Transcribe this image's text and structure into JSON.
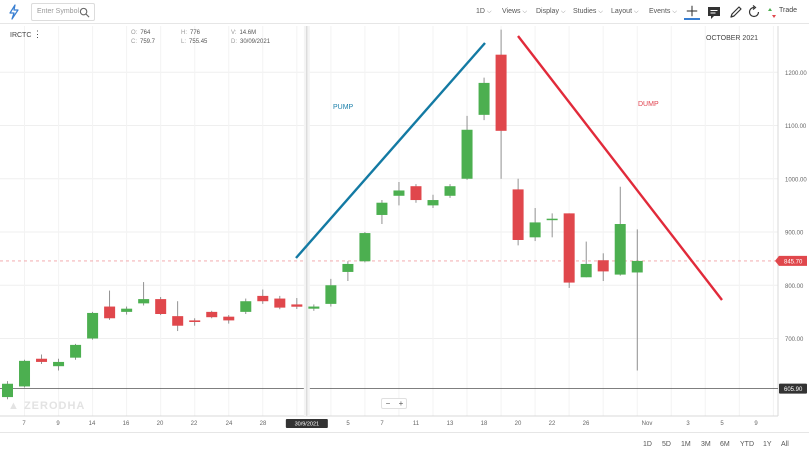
{
  "toolbar": {
    "search_placeholder": "Enter Symbol",
    "interval": "1D",
    "menus": [
      "Views",
      "Display",
      "Studies",
      "Layout",
      "Events"
    ],
    "trade_label": "Trade"
  },
  "chart_header": {
    "symbol": "IRCTC",
    "open": "764",
    "high": "776",
    "volume": "14.6M",
    "close": "759.7",
    "low": "755.45",
    "date": "30/09/2021",
    "labels": {
      "open": "O:",
      "high": "H:",
      "volume": "V:",
      "close": "C:",
      "low": "L:",
      "date": "D:"
    }
  },
  "annotations": {
    "month": "OCTOBER 2021",
    "pump": "PUMP",
    "dump": "DUMP"
  },
  "watermark": "ZERODHA",
  "zoom": {
    "minus": "−",
    "plus": "+"
  },
  "range_buttons": [
    "1D",
    "5D",
    "1M",
    "3M",
    "6M",
    "YTD",
    "1Y",
    "All"
  ],
  "colors": {
    "up": "#4caf50",
    "down": "#e0474c",
    "pump_line": "#137aa3",
    "dump_line": "#e12a3a",
    "price_tag": "#e0474c"
  },
  "chart_data": {
    "type": "candlestick",
    "ylim": [
      580,
      1290
    ],
    "y_ticks": [
      700,
      800,
      900,
      1000,
      1100,
      1200
    ],
    "y_tick_labels": [
      "700.00",
      "800.00",
      "900.00",
      "1000.00",
      "1100.00",
      "1200.00"
    ],
    "current_price": "845.70",
    "reference_price": "605.90",
    "x_tick_labels": [
      "7",
      "9",
      "14",
      "16",
      "20",
      "22",
      "24",
      "28",
      "5",
      "7",
      "11",
      "13",
      "18",
      "20",
      "22",
      "26",
      "Nov",
      "3",
      "5",
      "9"
    ],
    "crosshair_date": "30/9/2021",
    "candles": [
      {
        "o": 590,
        "c": 615,
        "h": 620,
        "l": 586
      },
      {
        "o": 610,
        "c": 658,
        "h": 660,
        "l": 608
      },
      {
        "o": 662,
        "c": 656,
        "h": 670,
        "l": 652
      },
      {
        "o": 648,
        "c": 656,
        "h": 662,
        "l": 640
      },
      {
        "o": 664,
        "c": 688,
        "h": 690,
        "l": 660
      },
      {
        "o": 700,
        "c": 748,
        "h": 750,
        "l": 698
      },
      {
        "o": 760,
        "c": 738,
        "h": 790,
        "l": 735
      },
      {
        "o": 750,
        "c": 756,
        "h": 760,
        "l": 745
      },
      {
        "o": 766,
        "c": 774,
        "h": 806,
        "l": 762
      },
      {
        "o": 774,
        "c": 746,
        "h": 778,
        "l": 744
      },
      {
        "o": 742,
        "c": 724,
        "h": 770,
        "l": 714
      },
      {
        "o": 734,
        "c": 731,
        "h": 738,
        "l": 724
      },
      {
        "o": 750,
        "c": 740,
        "h": 752,
        "l": 738
      },
      {
        "o": 741,
        "c": 734,
        "h": 744,
        "l": 728
      },
      {
        "o": 750,
        "c": 770,
        "h": 775,
        "l": 746
      },
      {
        "o": 780,
        "c": 770,
        "h": 792,
        "l": 765
      },
      {
        "o": 775,
        "c": 758,
        "h": 780,
        "l": 755
      },
      {
        "o": 764,
        "c": 759.7,
        "h": 776,
        "l": 755.45
      },
      {
        "o": 756,
        "c": 760,
        "h": 764,
        "l": 752
      },
      {
        "o": 765,
        "c": 800,
        "h": 812,
        "l": 760
      },
      {
        "o": 825,
        "c": 840,
        "h": 845,
        "l": 808
      },
      {
        "o": 845,
        "c": 898,
        "h": 900,
        "l": 843
      },
      {
        "o": 932,
        "c": 955,
        "h": 960,
        "l": 915
      },
      {
        "o": 968,
        "c": 978,
        "h": 994,
        "l": 950
      },
      {
        "o": 986,
        "c": 960,
        "h": 990,
        "l": 955
      },
      {
        "o": 950,
        "c": 960,
        "h": 970,
        "l": 945
      },
      {
        "o": 968,
        "c": 986,
        "h": 990,
        "l": 964
      },
      {
        "o": 1000,
        "c": 1092,
        "h": 1118,
        "l": 998
      },
      {
        "o": 1120,
        "c": 1180,
        "h": 1190,
        "l": 1110
      },
      {
        "o": 1233,
        "c": 1090,
        "h": 1280,
        "l": 1000
      },
      {
        "o": 980,
        "c": 885,
        "h": 1000,
        "l": 875
      },
      {
        "o": 890,
        "c": 918,
        "h": 945,
        "l": 883
      },
      {
        "o": 925,
        "c": 925,
        "h": 935,
        "l": 890
      },
      {
        "o": 935,
        "c": 805,
        "h": 935,
        "l": 795
      },
      {
        "o": 815,
        "c": 840,
        "h": 882,
        "l": 815
      },
      {
        "o": 847,
        "c": 826,
        "h": 860,
        "l": 808
      },
      {
        "o": 820,
        "c": 915,
        "h": 985,
        "l": 818
      },
      {
        "o": 824,
        "c": 845.7,
        "h": 905,
        "l": 640
      }
    ]
  }
}
